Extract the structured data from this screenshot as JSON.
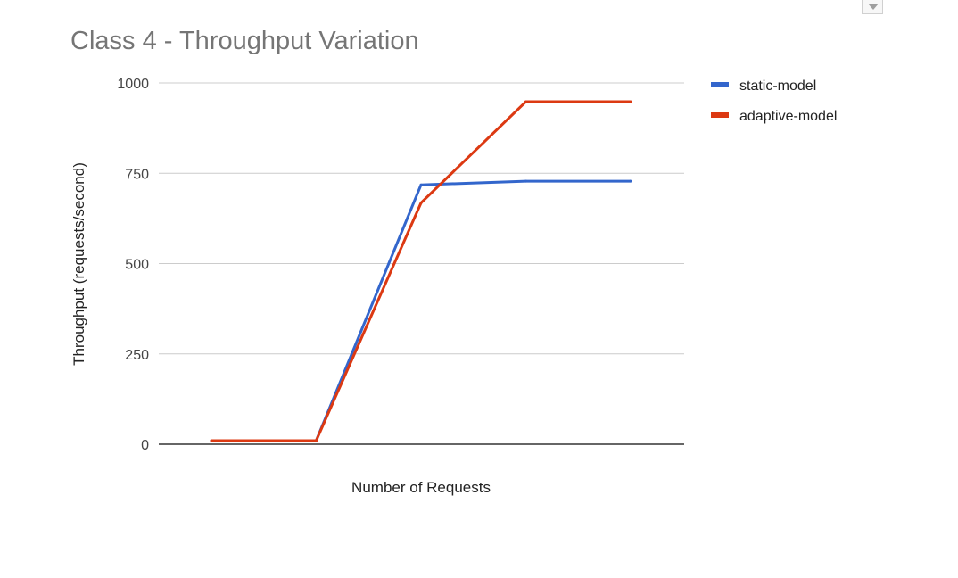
{
  "chart_data": {
    "type": "line",
    "title": "Class 4 - Throughput Variation",
    "xlabel": "Number of Requests",
    "ylabel": "Throughput (requests/second)",
    "ylim": [
      0,
      1000
    ],
    "yticks": [
      0,
      250,
      500,
      750,
      1000
    ],
    "grid": true,
    "legend_position": "right",
    "x_points": 5,
    "series": [
      {
        "name": "static-model",
        "color": "#3366cc",
        "values": [
          10,
          10,
          718,
          728,
          728
        ]
      },
      {
        "name": "adaptive-model",
        "color": "#dc3912",
        "values": [
          10,
          10,
          668,
          948,
          948
        ]
      }
    ]
  }
}
